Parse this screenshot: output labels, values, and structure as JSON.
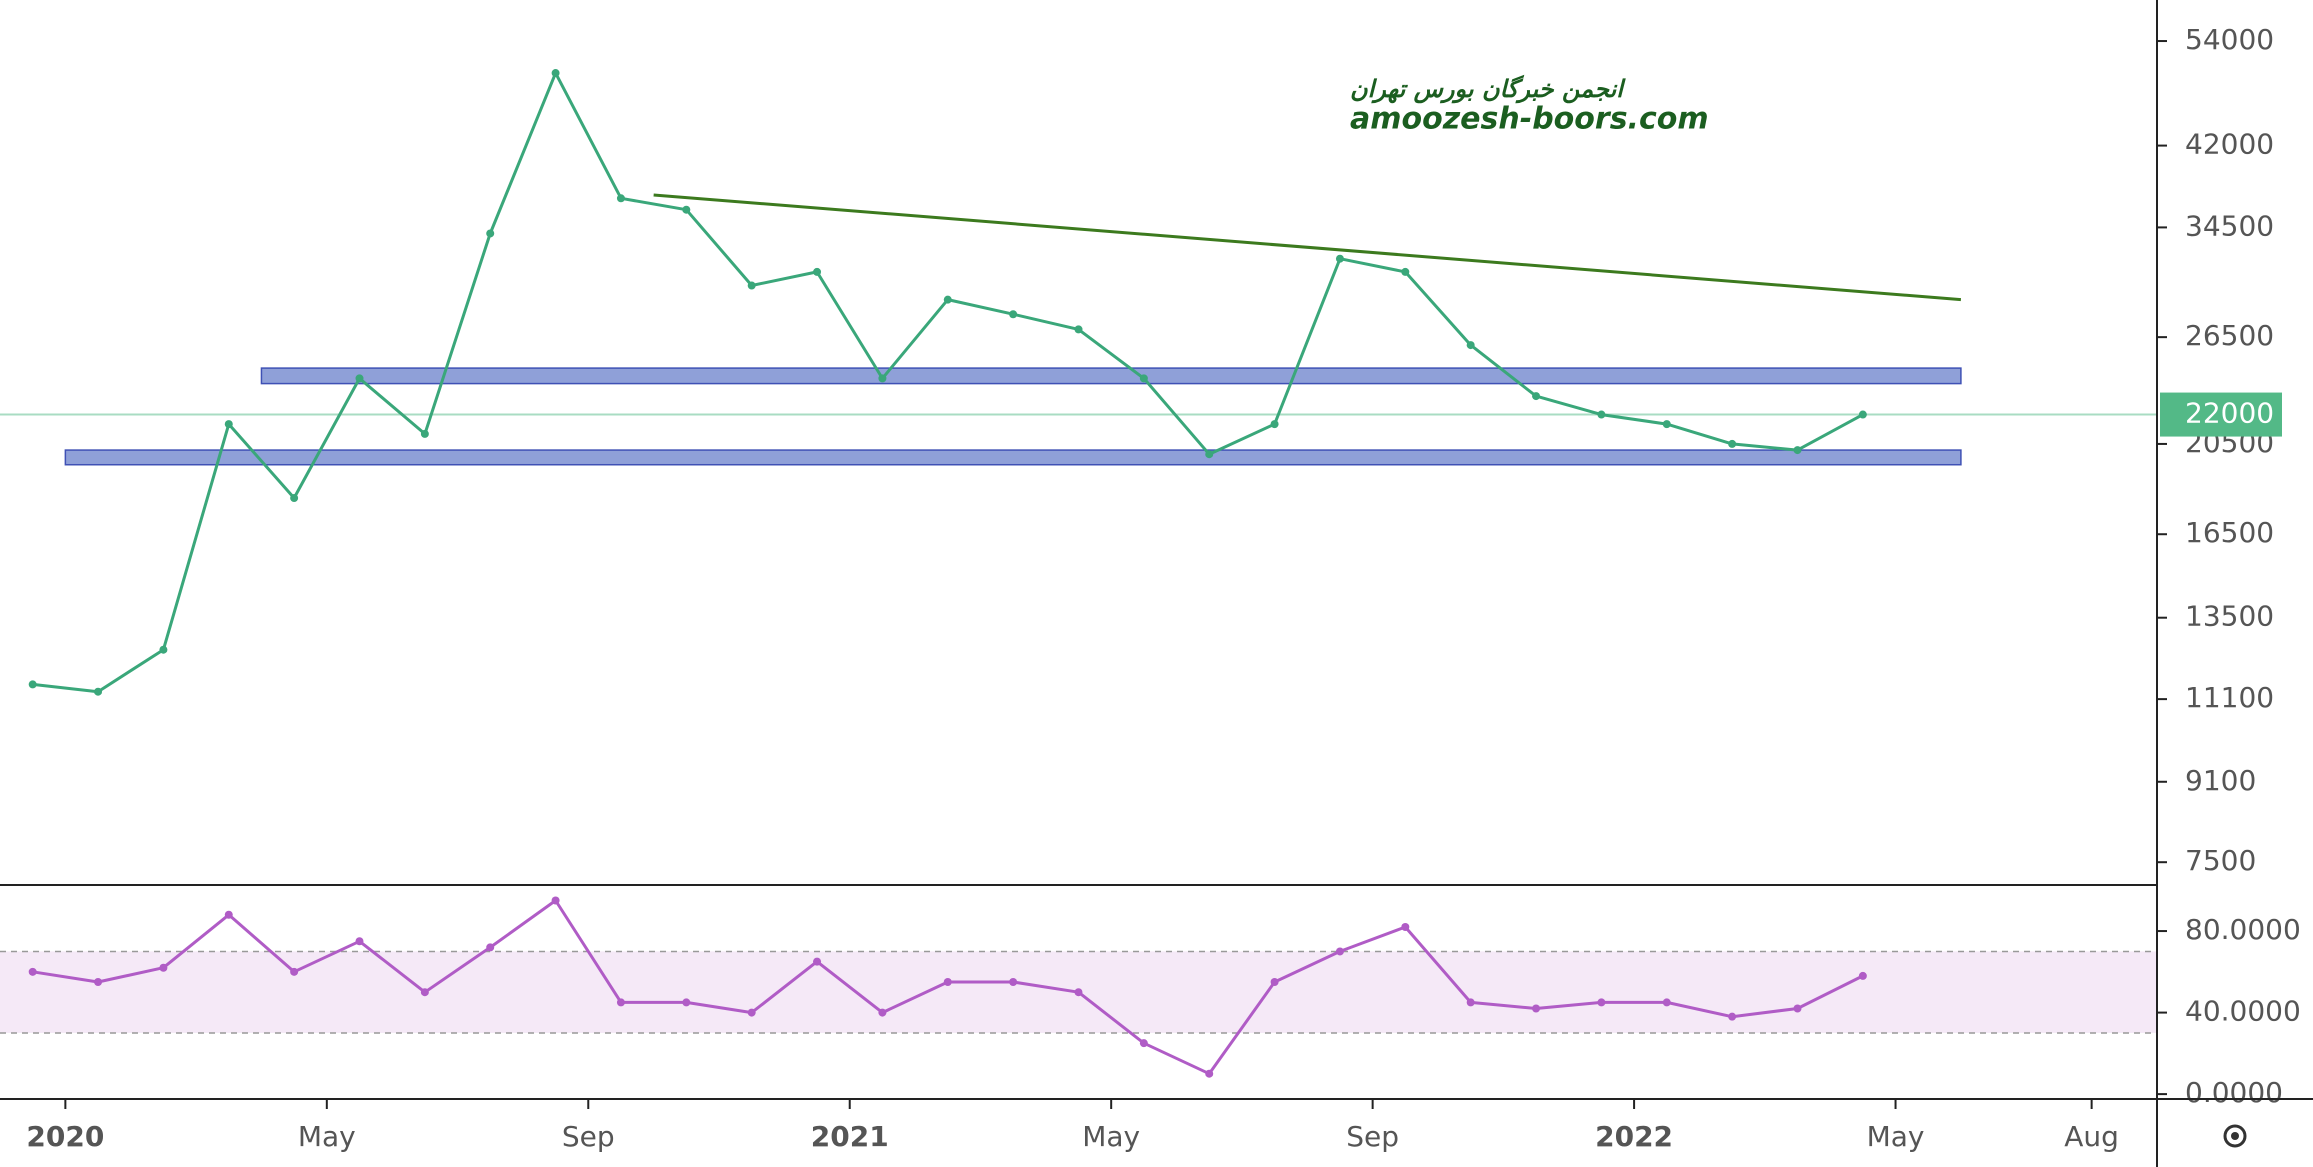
{
  "chart_data": [
    {
      "type": "line",
      "x": [
        "2019-12",
        "2020-01",
        "2020-02",
        "2020-03",
        "2020-04",
        "2020-05",
        "2020-06",
        "2020-07",
        "2020-08",
        "2020-09",
        "2020-10",
        "2020-11",
        "2020-12",
        "2021-01",
        "2021-02",
        "2021-03",
        "2021-04",
        "2021-05",
        "2021-06",
        "2021-07",
        "2021-08",
        "2021-09",
        "2021-10",
        "2021-11",
        "2021-12",
        "2022-01",
        "2022-02",
        "2022-03",
        "2022-04"
      ],
      "values": [
        11500,
        11300,
        12500,
        21500,
        18000,
        24000,
        21000,
        34000,
        50000,
        37000,
        36000,
        30000,
        31000,
        24000,
        29000,
        28000,
        27000,
        24000,
        20000,
        21500,
        32000,
        31000,
        26000,
        23000,
        22000,
        21500,
        20500,
        20200,
        22000
      ],
      "color": "#3aa77a",
      "log_scale": true,
      "xlim": [
        "2019-12",
        "2022-09"
      ],
      "xticks": [
        {
          "value": "2020-01",
          "label": "2020"
        },
        {
          "value": "2020-05",
          "label": "May"
        },
        {
          "value": "2020-09",
          "label": "Sep"
        },
        {
          "value": "2021-01",
          "label": "2021"
        },
        {
          "value": "2021-05",
          "label": "May"
        },
        {
          "value": "2021-09",
          "label": "Sep"
        },
        {
          "value": "2022-01",
          "label": "2022"
        },
        {
          "value": "2022-05",
          "label": "May"
        },
        {
          "value": "2022-08",
          "label": "Aug"
        }
      ],
      "ylim": [
        7100,
        59600
      ],
      "yticks": [
        54000,
        42000,
        34500,
        26500,
        20500,
        16500,
        13500,
        11100,
        9100,
        7500
      ],
      "zones": [
        {
          "x": [
            "2020-04",
            "2022-06"
          ],
          "low": 23700,
          "high": 24600,
          "color": "#7b8fd1"
        },
        {
          "x": [
            "2020-01",
            "2022-06"
          ],
          "low": 19500,
          "high": 20200,
          "color": "#7b8fd1"
        }
      ],
      "trendline": {
        "x": [
          "2020-10",
          "2022-06"
        ],
        "values": [
          37300,
          29000
        ],
        "color": "#3c7a1e"
      },
      "last_value": 22000,
      "last_value_color": "#53b987",
      "watermark": [
        "انجمن خبرگان بورس تهران",
        "amoozesh-boors.com"
      ]
    },
    {
      "type": "line",
      "x": [
        "2019-12",
        "2020-01",
        "2020-02",
        "2020-03",
        "2020-04",
        "2020-05",
        "2020-06",
        "2020-07",
        "2020-08",
        "2020-09",
        "2020-10",
        "2020-11",
        "2020-12",
        "2021-01",
        "2021-02",
        "2021-03",
        "2021-04",
        "2021-05",
        "2021-06",
        "2021-07",
        "2021-08",
        "2021-09",
        "2021-10",
        "2021-11",
        "2021-12",
        "2022-01",
        "2022-02",
        "2022-03",
        "2022-04"
      ],
      "values": [
        60,
        55,
        62,
        88,
        60,
        75,
        50,
        72,
        95,
        45,
        45,
        40,
        65,
        40,
        55,
        55,
        50,
        25,
        10,
        55,
        70,
        82,
        45,
        42,
        45,
        45,
        38,
        42,
        58
      ],
      "color": "#b05cc6",
      "xlim": [
        "2019-12",
        "2022-09"
      ],
      "ylim": [
        -2.4,
        102.6
      ],
      "yticks": [
        {
          "value": 80,
          "label": "80.0000"
        },
        {
          "value": 40,
          "label": "40.0000"
        },
        {
          "value": 0,
          "label": "0.0000"
        }
      ],
      "band": [
        30,
        70
      ],
      "band_color": "#9c27b0"
    }
  ]
}
